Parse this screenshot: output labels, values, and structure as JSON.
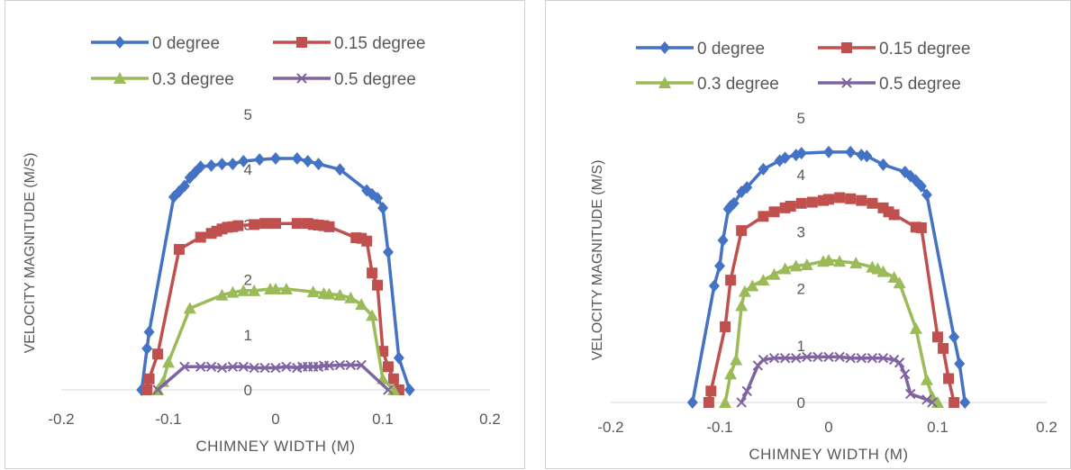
{
  "chart_data": [
    {
      "type": "line",
      "xlabel": "CHIMNEY WIDTH (M)",
      "ylabel": "VELOCITY MAGNITUDE (M/S)",
      "xlim": [
        -0.2,
        0.2
      ],
      "ylim": [
        0,
        5
      ],
      "xticks": [
        "-0.2",
        "-0.1",
        "0",
        "0.1",
        "0.2"
      ],
      "yticks": [
        "0",
        "1",
        "2",
        "3",
        "4",
        "5"
      ],
      "legend_position": "top",
      "series": [
        {
          "name": "0 degree",
          "color": "#4472C4",
          "marker": "diamond",
          "x": [
            -0.125,
            -0.12,
            -0.118,
            -0.095,
            -0.09,
            -0.085,
            -0.08,
            -0.075,
            -0.07,
            -0.06,
            -0.05,
            -0.04,
            -0.03,
            -0.015,
            0,
            0.02,
            0.03,
            0.04,
            0.06,
            0.085,
            0.09,
            0.095,
            0.1,
            0.105,
            0.115,
            0.125
          ],
          "y": [
            0,
            0.75,
            1.05,
            3.5,
            3.6,
            3.7,
            3.85,
            3.95,
            4.05,
            4.07,
            4.1,
            4.1,
            4.15,
            4.18,
            4.2,
            4.2,
            4.15,
            4.1,
            4.0,
            3.62,
            3.55,
            3.48,
            3.3,
            2.5,
            0.58,
            0
          ]
        },
        {
          "name": "0.15 degree",
          "color": "#C0504D",
          "marker": "square",
          "x": [
            -0.12,
            -0.118,
            -0.11,
            -0.09,
            -0.07,
            -0.06,
            -0.055,
            -0.05,
            -0.045,
            -0.04,
            -0.035,
            -0.02,
            -0.01,
            0,
            0.02,
            0.03,
            0.035,
            0.04,
            0.045,
            0.05,
            0.075,
            0.08,
            0.085,
            0.09,
            0.095,
            0.1,
            0.105,
            0.11,
            0.115
          ],
          "y": [
            0,
            0.2,
            0.65,
            2.55,
            2.77,
            2.84,
            2.88,
            2.92,
            2.95,
            2.96,
            2.98,
            3.0,
            3.02,
            3.02,
            3.02,
            3.02,
            3.0,
            2.99,
            2.98,
            2.96,
            2.76,
            2.75,
            2.7,
            2.12,
            1.9,
            0.7,
            0.42,
            0.2,
            0
          ]
        },
        {
          "name": "0.3 degree",
          "color": "#9BBB59",
          "marker": "triangle",
          "x": [
            -0.11,
            -0.105,
            -0.1,
            -0.08,
            -0.05,
            -0.04,
            -0.03,
            -0.02,
            -0.005,
            0,
            0.01,
            0.035,
            0.045,
            0.05,
            0.06,
            0.07,
            0.08,
            0.09,
            0.1,
            0.11
          ],
          "y": [
            0,
            0.15,
            0.5,
            1.48,
            1.72,
            1.77,
            1.8,
            1.8,
            1.83,
            1.83,
            1.83,
            1.78,
            1.75,
            1.74,
            1.72,
            1.67,
            1.55,
            1.35,
            0.2,
            0
          ]
        },
        {
          "name": "0.5 degree",
          "color": "#8064A2",
          "marker": "x",
          "x": [
            -0.11,
            -0.085,
            -0.07,
            -0.06,
            -0.05,
            -0.04,
            -0.03,
            -0.02,
            -0.01,
            0,
            0.01,
            0.02,
            0.025,
            0.03,
            0.035,
            0.04,
            0.045,
            0.05,
            0.06,
            0.07,
            0.08,
            0.105
          ],
          "y": [
            0,
            0.42,
            0.42,
            0.42,
            0.4,
            0.42,
            0.42,
            0.4,
            0.4,
            0.4,
            0.42,
            0.4,
            0.42,
            0.42,
            0.42,
            0.42,
            0.44,
            0.44,
            0.45,
            0.45,
            0.45,
            0
          ]
        }
      ]
    },
    {
      "type": "line",
      "xlabel": "CHIMNEY WIDTH (M)",
      "ylabel": "VELOCITY MAGNITUDE (M/S)",
      "xlim": [
        -0.2,
        0.2
      ],
      "ylim": [
        0,
        5
      ],
      "xticks": [
        "-0.2",
        "-0.1",
        "0",
        "0.1",
        "0.2"
      ],
      "yticks": [
        "0",
        "1",
        "2",
        "3",
        "4",
        "5"
      ],
      "legend_position": "top",
      "series": [
        {
          "name": "0 degree",
          "color": "#4472C4",
          "marker": "diamond",
          "x": [
            -0.125,
            -0.105,
            -0.1,
            -0.097,
            -0.092,
            -0.09,
            -0.087,
            -0.08,
            -0.075,
            -0.06,
            -0.045,
            -0.04,
            -0.03,
            -0.025,
            0,
            0.02,
            0.03,
            0.035,
            0.05,
            0.07,
            0.075,
            0.08,
            0.085,
            0.09,
            0.115,
            0.12,
            0.125
          ],
          "y": [
            0,
            2.05,
            2.4,
            2.85,
            3.4,
            3.45,
            3.5,
            3.7,
            3.78,
            4.1,
            4.25,
            4.3,
            4.35,
            4.38,
            4.4,
            4.4,
            4.35,
            4.33,
            4.18,
            4.05,
            3.98,
            3.9,
            3.8,
            3.65,
            1.15,
            0.68,
            0
          ]
        },
        {
          "name": "0.15 degree",
          "color": "#C0504D",
          "marker": "square",
          "x": [
            -0.11,
            -0.108,
            -0.095,
            -0.09,
            -0.08,
            -0.06,
            -0.05,
            -0.04,
            -0.035,
            -0.025,
            -0.015,
            -0.005,
            0,
            0.01,
            0.02,
            0.03,
            0.04,
            0.05,
            0.055,
            0.06,
            0.08,
            0.085,
            0.1,
            0.105,
            0.11,
            0.115
          ],
          "y": [
            0,
            0.2,
            1.33,
            2.15,
            3.02,
            3.27,
            3.35,
            3.42,
            3.45,
            3.5,
            3.52,
            3.55,
            3.57,
            3.6,
            3.58,
            3.55,
            3.5,
            3.42,
            3.35,
            3.3,
            3.08,
            3.07,
            1.15,
            0.95,
            0.42,
            0
          ]
        },
        {
          "name": "0.3 degree",
          "color": "#9BBB59",
          "marker": "triangle",
          "x": [
            -0.095,
            -0.09,
            -0.085,
            -0.08,
            -0.077,
            -0.07,
            -0.06,
            -0.05,
            -0.04,
            -0.03,
            -0.02,
            -0.005,
            0,
            0.01,
            0.025,
            0.04,
            0.045,
            0.05,
            0.06,
            0.065,
            0.08,
            0.09,
            0.095,
            0.1
          ],
          "y": [
            0,
            0.5,
            0.75,
            1.7,
            1.95,
            2.05,
            2.15,
            2.25,
            2.35,
            2.4,
            2.42,
            2.48,
            2.5,
            2.48,
            2.45,
            2.38,
            2.35,
            2.3,
            2.2,
            2.1,
            1.3,
            0.4,
            0.1,
            0
          ]
        },
        {
          "name": "0.5 degree",
          "color": "#8064A2",
          "marker": "x",
          "x": [
            -0.08,
            -0.075,
            -0.065,
            -0.06,
            -0.05,
            -0.04,
            -0.03,
            -0.02,
            -0.01,
            0,
            0.01,
            0.02,
            0.03,
            0.04,
            0.05,
            0.06,
            0.065,
            0.07,
            0.075,
            0.09,
            0.095
          ],
          "y": [
            0,
            0.2,
            0.65,
            0.75,
            0.78,
            0.78,
            0.78,
            0.8,
            0.8,
            0.8,
            0.8,
            0.78,
            0.78,
            0.78,
            0.78,
            0.75,
            0.7,
            0.5,
            0.15,
            0.05,
            0
          ]
        }
      ]
    }
  ]
}
